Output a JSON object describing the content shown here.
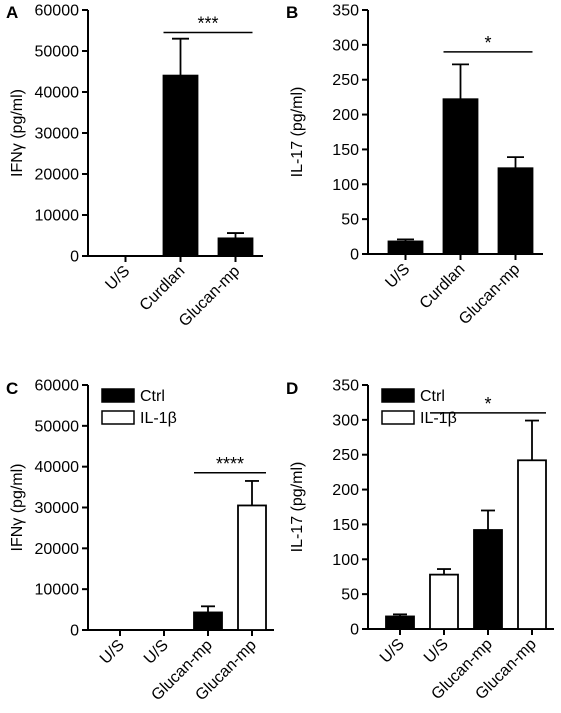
{
  "chart_data": [
    {
      "panel": "A",
      "type": "bar",
      "ylabel": "IFNγ (pg/ml)",
      "ylim": [
        0,
        60000
      ],
      "yticks": [
        0,
        10000,
        20000,
        30000,
        40000,
        50000,
        60000
      ],
      "categories": [
        "U/S",
        "Curdlan",
        "Glucan-mp"
      ],
      "series": [
        {
          "values": [
            0,
            44000,
            4300
          ],
          "errors": [
            0,
            9000,
            1300
          ],
          "fill": [
            "#000000",
            "#000000",
            "#000000"
          ]
        }
      ],
      "significance": {
        "label": "***",
        "from": 1,
        "to": 2,
        "y": 54500
      }
    },
    {
      "panel": "B",
      "type": "bar",
      "ylabel": "IL-17 (pg/ml)",
      "ylim": [
        0,
        350
      ],
      "yticks": [
        0,
        50,
        100,
        150,
        200,
        250,
        300,
        350
      ],
      "categories": [
        "U/S",
        "Curdlan",
        "Glucan-mp"
      ],
      "series": [
        {
          "values": [
            18,
            222,
            123
          ],
          "errors": [
            3,
            50,
            16
          ],
          "fill": [
            "#000000",
            "#000000",
            "#000000"
          ]
        }
      ],
      "significance": {
        "label": "*",
        "from": 1,
        "to": 2,
        "y": 290
      }
    },
    {
      "panel": "C",
      "type": "bar",
      "ylabel": "IFNγ (pg/ml)",
      "ylim": [
        0,
        60000
      ],
      "yticks": [
        0,
        10000,
        20000,
        30000,
        40000,
        50000,
        60000
      ],
      "categories": [
        "U/S",
        "U/S",
        "Glucan-mp",
        "Glucan-mp"
      ],
      "legend": [
        {
          "name": "Ctrl",
          "fill": "#000000"
        },
        {
          "name": "IL-1β",
          "fill": "#ffffff"
        }
      ],
      "legend_position": "top-left",
      "series": [
        {
          "values": [
            0,
            0,
            4300,
            30500
          ],
          "errors": [
            0,
            0,
            1500,
            6000
          ],
          "fill": [
            "#000000",
            "#ffffff",
            "#000000",
            "#ffffff"
          ]
        }
      ],
      "significance": {
        "label": "****",
        "from": 2,
        "to": 3,
        "y": 38500
      }
    },
    {
      "panel": "D",
      "type": "bar",
      "ylabel": "IL-17 (pg/ml)",
      "ylim": [
        0,
        350
      ],
      "yticks": [
        0,
        50,
        100,
        150,
        200,
        250,
        300,
        350
      ],
      "categories": [
        "U/S",
        "U/S",
        "Glucan-mp",
        "Glucan-mp"
      ],
      "legend": [
        {
          "name": "Ctrl",
          "fill": "#000000"
        },
        {
          "name": "IL-1β",
          "fill": "#ffffff"
        }
      ],
      "legend_position": "top-left",
      "series": [
        {
          "values": [
            18,
            78,
            142,
            242
          ],
          "errors": [
            3,
            8,
            28,
            57
          ],
          "fill": [
            "#000000",
            "#ffffff",
            "#000000",
            "#ffffff"
          ]
        }
      ],
      "significance": {
        "label": "*",
        "from": 1,
        "to": 3,
        "y": 310
      }
    }
  ]
}
